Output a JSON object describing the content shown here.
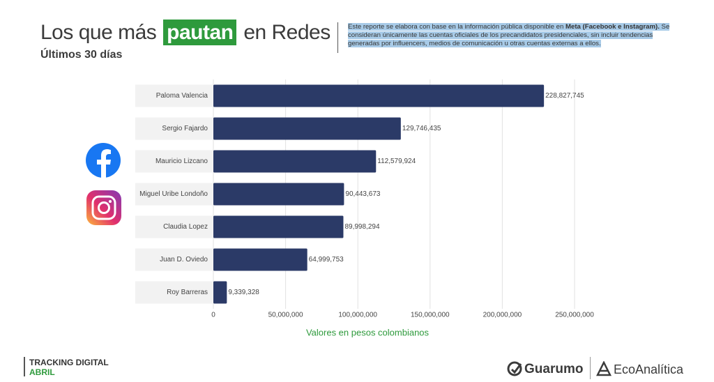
{
  "header": {
    "title_start": "Los que más",
    "title_highlight": "pautan",
    "title_end": "en Redes",
    "subtitle": "Últimos 30 días"
  },
  "note": {
    "intro": "Este reporte se elabora con base en la información pública disponible en ",
    "source": "Meta (Facebook e Instagram).",
    "rest": " Se consideran únicamente las cuentas oficiales de los precandidatos presidenciales, sin incluir tendencias generadas por influencers, medios de comunicación u otras cuentas externas a ellos."
  },
  "footer": {
    "line1": "TRACKING DIGITAL",
    "line2": "ABRIL",
    "logo1": "Guarumo",
    "logo2": "EcoAnalítica"
  },
  "chart_data": {
    "type": "bar",
    "orientation": "horizontal",
    "categories": [
      "Paloma Valencia",
      "Sergio Fajardo",
      "Mauricio Lizcano",
      "Miguel Uribe Londoño",
      "Claudia Lopez",
      "Juan D. Oviedo",
      "Roy Barreras"
    ],
    "values": [
      228827745,
      129746435,
      112579924,
      90443673,
      89998294,
      64999753,
      9339328
    ],
    "value_labels": [
      "228,827,745",
      "129,746,435",
      "112,579,924",
      "90,443,673",
      "89,998,294",
      "64,999,753",
      "9,339,328"
    ],
    "color": "#2b3a67",
    "xlim": [
      0,
      260000000
    ],
    "xticks": [
      0,
      {
        "value": 50000000,
        "label": "50,000,000"
      },
      {
        "value": 100000000,
        "label": "100,000,000"
      },
      {
        "value": 150000000,
        "label": "150,000,000"
      },
      {
        "value": 200000000,
        "label": "200,000,000"
      },
      {
        "value": 250000000,
        "label": "250,000,000"
      }
    ],
    "grid": true,
    "x_label": "Valores en pesos colombianos"
  }
}
